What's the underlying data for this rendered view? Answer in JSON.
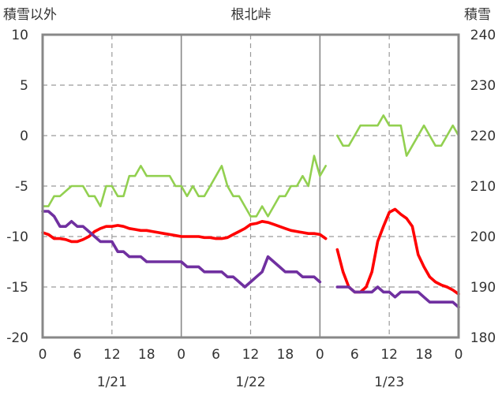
{
  "chart_data": {
    "type": "line",
    "title": "根北峠",
    "left_axis_label": "積雪以外",
    "right_axis_label": "積雪",
    "y_left": {
      "lim": [
        -20,
        10
      ],
      "ticks": [
        10,
        5,
        0,
        -5,
        -10,
        -15,
        -20
      ]
    },
    "y_right": {
      "lim": [
        180,
        240
      ],
      "ticks": [
        240,
        230,
        220,
        210,
        200,
        190,
        180
      ]
    },
    "x_hour_ticks": [
      {
        "h": 0,
        "label": "0"
      },
      {
        "h": 6,
        "label": "6"
      },
      {
        "h": 12,
        "label": "12"
      },
      {
        "h": 18,
        "label": "18"
      },
      {
        "h": 24,
        "label": "0"
      },
      {
        "h": 30,
        "label": "6"
      },
      {
        "h": 36,
        "label": "12"
      },
      {
        "h": 42,
        "label": "18"
      },
      {
        "h": 48,
        "label": "0"
      },
      {
        "h": 54,
        "label": "6"
      },
      {
        "h": 60,
        "label": "12"
      },
      {
        "h": 66,
        "label": "18"
      },
      {
        "h": 72,
        "label": "0"
      }
    ],
    "x_day_labels": [
      {
        "h": 12,
        "label": "1/21"
      },
      {
        "h": 36,
        "label": "1/22"
      },
      {
        "h": 60,
        "label": "1/23"
      }
    ],
    "grid": {
      "dashed_hours": [
        12,
        36,
        60
      ],
      "solid_hours": [
        24,
        48
      ],
      "horizontal": [
        5,
        0,
        -5,
        -10,
        -15
      ]
    },
    "series": [
      {
        "color": "#92d050",
        "axis": "left",
        "segments": [
          [
            [
              0,
              -7
            ],
            [
              1,
              -7
            ],
            [
              2,
              -6
            ],
            [
              3,
              -6
            ],
            [
              4,
              -5.5
            ],
            [
              5,
              -5
            ],
            [
              6,
              -5
            ],
            [
              7,
              -5
            ],
            [
              8,
              -6
            ],
            [
              9,
              -6
            ],
            [
              10,
              -7
            ],
            [
              11,
              -5
            ],
            [
              12,
              -5
            ],
            [
              13,
              -6
            ],
            [
              14,
              -6
            ],
            [
              15,
              -4
            ],
            [
              16,
              -4
            ],
            [
              17,
              -3
            ],
            [
              18,
              -4
            ],
            [
              19,
              -4
            ],
            [
              20,
              -4
            ],
            [
              21,
              -4
            ],
            [
              22,
              -4
            ],
            [
              23,
              -5
            ],
            [
              24,
              -5
            ],
            [
              25,
              -6
            ],
            [
              26,
              -5
            ],
            [
              27,
              -6
            ],
            [
              28,
              -6
            ],
            [
              29,
              -5
            ],
            [
              30,
              -4
            ],
            [
              31,
              -3
            ],
            [
              32,
              -5
            ],
            [
              33,
              -6
            ],
            [
              34,
              -6
            ],
            [
              35,
              -7
            ],
            [
              36,
              -8
            ],
            [
              37,
              -8
            ],
            [
              38,
              -7
            ],
            [
              39,
              -8
            ],
            [
              40,
              -7
            ],
            [
              41,
              -6
            ],
            [
              42,
              -6
            ],
            [
              43,
              -5
            ],
            [
              44,
              -5
            ],
            [
              45,
              -4
            ],
            [
              46,
              -5
            ],
            [
              47,
              -2
            ],
            [
              48,
              -4
            ],
            [
              49,
              -3
            ]
          ],
          [
            [
              51,
              0
            ],
            [
              52,
              -1
            ],
            [
              53,
              -1
            ],
            [
              54,
              0
            ],
            [
              55,
              1
            ],
            [
              56,
              1
            ],
            [
              57,
              1
            ],
            [
              58,
              1
            ],
            [
              59,
              2
            ],
            [
              60,
              1
            ],
            [
              61,
              1
            ],
            [
              62,
              1
            ],
            [
              63,
              -2
            ],
            [
              64,
              -1
            ],
            [
              65,
              0
            ],
            [
              66,
              1
            ],
            [
              67,
              0
            ],
            [
              68,
              -1
            ],
            [
              69,
              -1
            ],
            [
              70,
              0
            ],
            [
              71,
              1
            ],
            [
              72,
              0
            ]
          ]
        ]
      },
      {
        "color": "#ff0000",
        "axis": "left",
        "segments": [
          [
            [
              0,
              -9.6
            ],
            [
              1,
              -9.8
            ],
            [
              2,
              -10.2
            ],
            [
              3,
              -10.2
            ],
            [
              4,
              -10.3
            ],
            [
              5,
              -10.5
            ],
            [
              6,
              -10.5
            ],
            [
              7,
              -10.3
            ],
            [
              8,
              -10
            ],
            [
              9,
              -9.5
            ],
            [
              10,
              -9.2
            ],
            [
              11,
              -9
            ],
            [
              12,
              -9
            ],
            [
              13,
              -8.9
            ],
            [
              14,
              -9
            ],
            [
              15,
              -9.2
            ],
            [
              16,
              -9.3
            ],
            [
              17,
              -9.4
            ],
            [
              18,
              -9.4
            ],
            [
              19,
              -9.5
            ],
            [
              20,
              -9.6
            ],
            [
              21,
              -9.7
            ],
            [
              22,
              -9.8
            ],
            [
              23,
              -9.9
            ],
            [
              24,
              -10
            ],
            [
              25,
              -10
            ],
            [
              26,
              -10
            ],
            [
              27,
              -10
            ],
            [
              28,
              -10.1
            ],
            [
              29,
              -10.1
            ],
            [
              30,
              -10.2
            ],
            [
              31,
              -10.2
            ],
            [
              32,
              -10.1
            ],
            [
              33,
              -9.8
            ],
            [
              34,
              -9.5
            ],
            [
              35,
              -9.2
            ],
            [
              36,
              -8.8
            ],
            [
              37,
              -8.7
            ],
            [
              38,
              -8.5
            ],
            [
              39,
              -8.6
            ],
            [
              40,
              -8.8
            ],
            [
              41,
              -9
            ],
            [
              42,
              -9.2
            ],
            [
              43,
              -9.4
            ],
            [
              44,
              -9.5
            ],
            [
              45,
              -9.6
            ],
            [
              46,
              -9.7
            ],
            [
              47,
              -9.7
            ],
            [
              48,
              -9.8
            ],
            [
              49,
              -10.2
            ]
          ],
          [
            [
              51,
              -11.3
            ],
            [
              52,
              -13.5
            ],
            [
              53,
              -15
            ],
            [
              54,
              -15.5
            ],
            [
              55,
              -15.5
            ],
            [
              56,
              -15
            ],
            [
              57,
              -13.5
            ],
            [
              58,
              -10.5
            ],
            [
              59,
              -9
            ],
            [
              60,
              -7.6
            ],
            [
              61,
              -7.3
            ],
            [
              62,
              -7.8
            ],
            [
              63,
              -8.2
            ],
            [
              64,
              -9
            ],
            [
              65,
              -11.8
            ],
            [
              66,
              -13
            ],
            [
              67,
              -14
            ],
            [
              68,
              -14.5
            ],
            [
              69,
              -14.8
            ],
            [
              70,
              -15
            ],
            [
              71,
              -15.3
            ],
            [
              72,
              -15.7
            ]
          ]
        ]
      },
      {
        "color": "#7030a0",
        "axis": "right",
        "segments": [
          [
            [
              0,
              205
            ],
            [
              1,
              205
            ],
            [
              2,
              204
            ],
            [
              3,
              202
            ],
            [
              4,
              202
            ],
            [
              5,
              203
            ],
            [
              6,
              202
            ],
            [
              7,
              202
            ],
            [
              8,
              201
            ],
            [
              9,
              200
            ],
            [
              10,
              199
            ],
            [
              11,
              199
            ],
            [
              12,
              199
            ],
            [
              13,
              197
            ],
            [
              14,
              197
            ],
            [
              15,
              196
            ],
            [
              16,
              196
            ],
            [
              17,
              196
            ],
            [
              18,
              195
            ],
            [
              19,
              195
            ],
            [
              20,
              195
            ],
            [
              21,
              195
            ],
            [
              22,
              195
            ],
            [
              23,
              195
            ],
            [
              24,
              195
            ],
            [
              25,
              194
            ],
            [
              26,
              194
            ],
            [
              27,
              194
            ],
            [
              28,
              193
            ],
            [
              29,
              193
            ],
            [
              30,
              193
            ],
            [
              31,
              193
            ],
            [
              32,
              192
            ],
            [
              33,
              192
            ],
            [
              34,
              191
            ],
            [
              35,
              190
            ],
            [
              36,
              191
            ],
            [
              37,
              192
            ],
            [
              38,
              193
            ],
            [
              39,
              196
            ],
            [
              40,
              195
            ],
            [
              41,
              194
            ],
            [
              42,
              193
            ],
            [
              43,
              193
            ],
            [
              44,
              193
            ],
            [
              45,
              192
            ],
            [
              46,
              192
            ],
            [
              47,
              192
            ],
            [
              48,
              191
            ]
          ],
          [
            [
              51,
              190
            ],
            [
              52,
              190
            ],
            [
              53,
              190
            ],
            [
              54,
              189
            ],
            [
              55,
              189
            ],
            [
              56,
              189
            ],
            [
              57,
              189
            ],
            [
              58,
              190
            ],
            [
              59,
              189
            ],
            [
              60,
              189
            ],
            [
              61,
              188
            ],
            [
              62,
              189
            ],
            [
              63,
              189
            ],
            [
              64,
              189
            ],
            [
              65,
              189
            ],
            [
              66,
              188
            ],
            [
              67,
              187
            ],
            [
              68,
              187
            ],
            [
              69,
              187
            ],
            [
              70,
              187
            ],
            [
              71,
              187
            ],
            [
              72,
              186
            ]
          ]
        ]
      }
    ]
  }
}
